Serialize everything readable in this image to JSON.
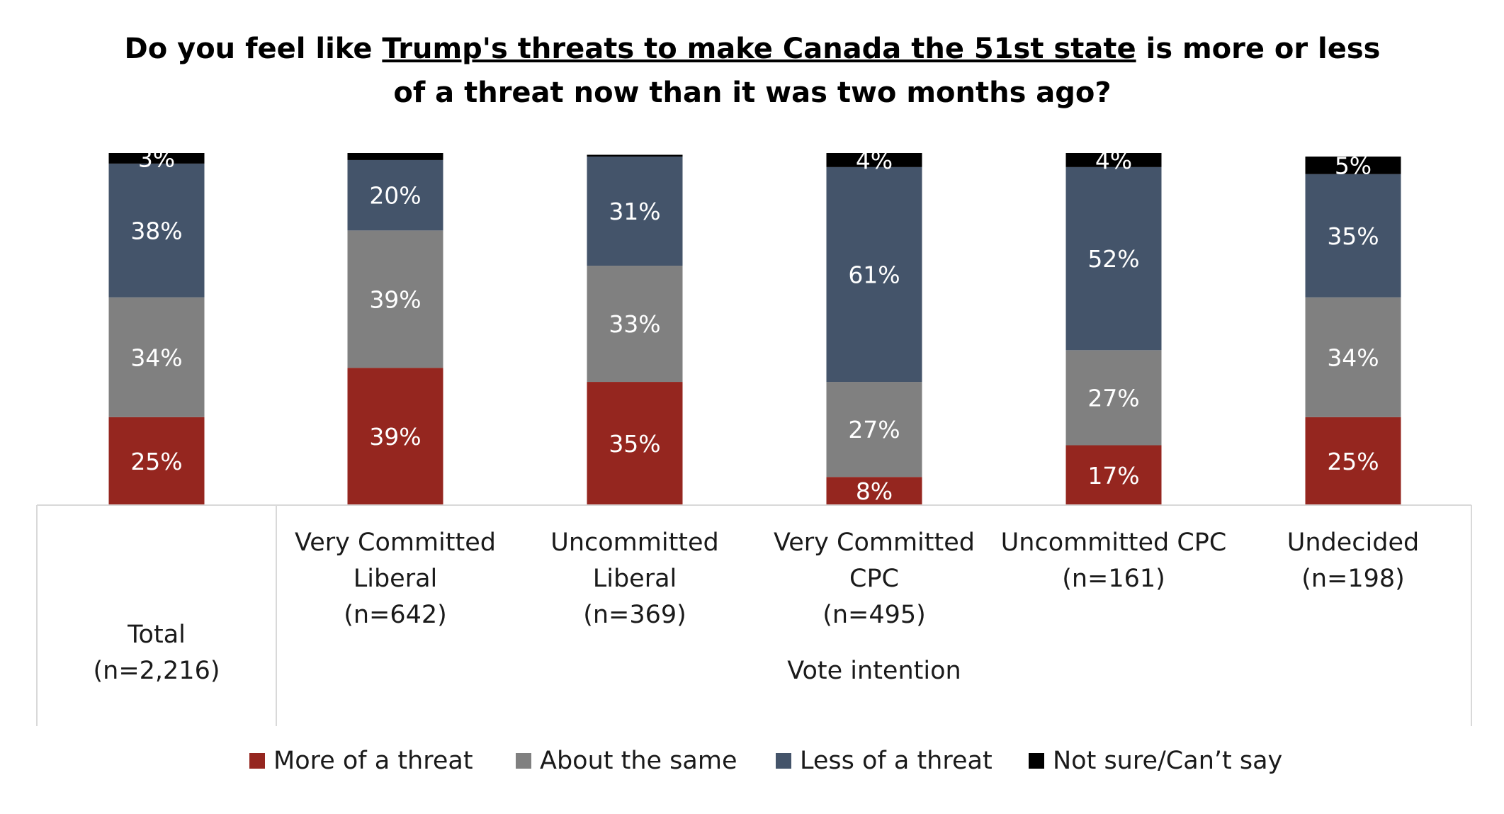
{
  "chart_data": {
    "type": "bar",
    "stacked": true,
    "orientation": "vertical",
    "title": {
      "line1_before": "Do you feel like ",
      "line1_underlined": "Trump's threats to make Canada the 51st state",
      "line1_after": " is more or less",
      "line2": "of a threat now than it was two months ago?"
    },
    "categories": [
      {
        "lines": [
          "Total",
          "(n=2,216)"
        ],
        "group": ""
      },
      {
        "lines": [
          "Very Committed",
          "Liberal",
          "(n=642)"
        ],
        "group": "Vote intention"
      },
      {
        "lines": [
          "Uncommitted",
          "Liberal",
          "(n=369)"
        ],
        "group": "Vote intention"
      },
      {
        "lines": [
          "Very Committed",
          "CPC",
          "(n=495)"
        ],
        "group": "Vote intention"
      },
      {
        "lines": [
          "Uncommitted CPC",
          "(n=161)"
        ],
        "group": "Vote intention"
      },
      {
        "lines": [
          "Undecided",
          "(n=198)"
        ],
        "group": "Vote intention"
      }
    ],
    "group_label": "Vote intention",
    "series": [
      {
        "name": "More of a threat",
        "color": "#95261f",
        "values": [
          25,
          39,
          35,
          8,
          17,
          25
        ],
        "labels": [
          "25%",
          "39%",
          "35%",
          "8%",
          "17%",
          "25%"
        ]
      },
      {
        "name": "About the same",
        "color": "#808080",
        "values": [
          34,
          39,
          33,
          27,
          27,
          34
        ],
        "labels": [
          "34%",
          "39%",
          "33%",
          "27%",
          "27%",
          "34%"
        ]
      },
      {
        "name": "Less of a threat",
        "color": "#44546a",
        "values": [
          38,
          20,
          31,
          61,
          52,
          35
        ],
        "labels": [
          "38%",
          "20%",
          "31%",
          "61%",
          "52%",
          "35%"
        ]
      },
      {
        "name": "Not sure/Can’t say",
        "color": "#000000",
        "values": [
          3,
          2,
          0.5,
          4,
          4,
          5
        ],
        "labels": [
          "3%",
          "",
          "",
          "4%",
          "4%",
          "5%"
        ]
      }
    ],
    "ylim": [
      0,
      100
    ],
    "grid": false,
    "legend_position": "bottom"
  }
}
